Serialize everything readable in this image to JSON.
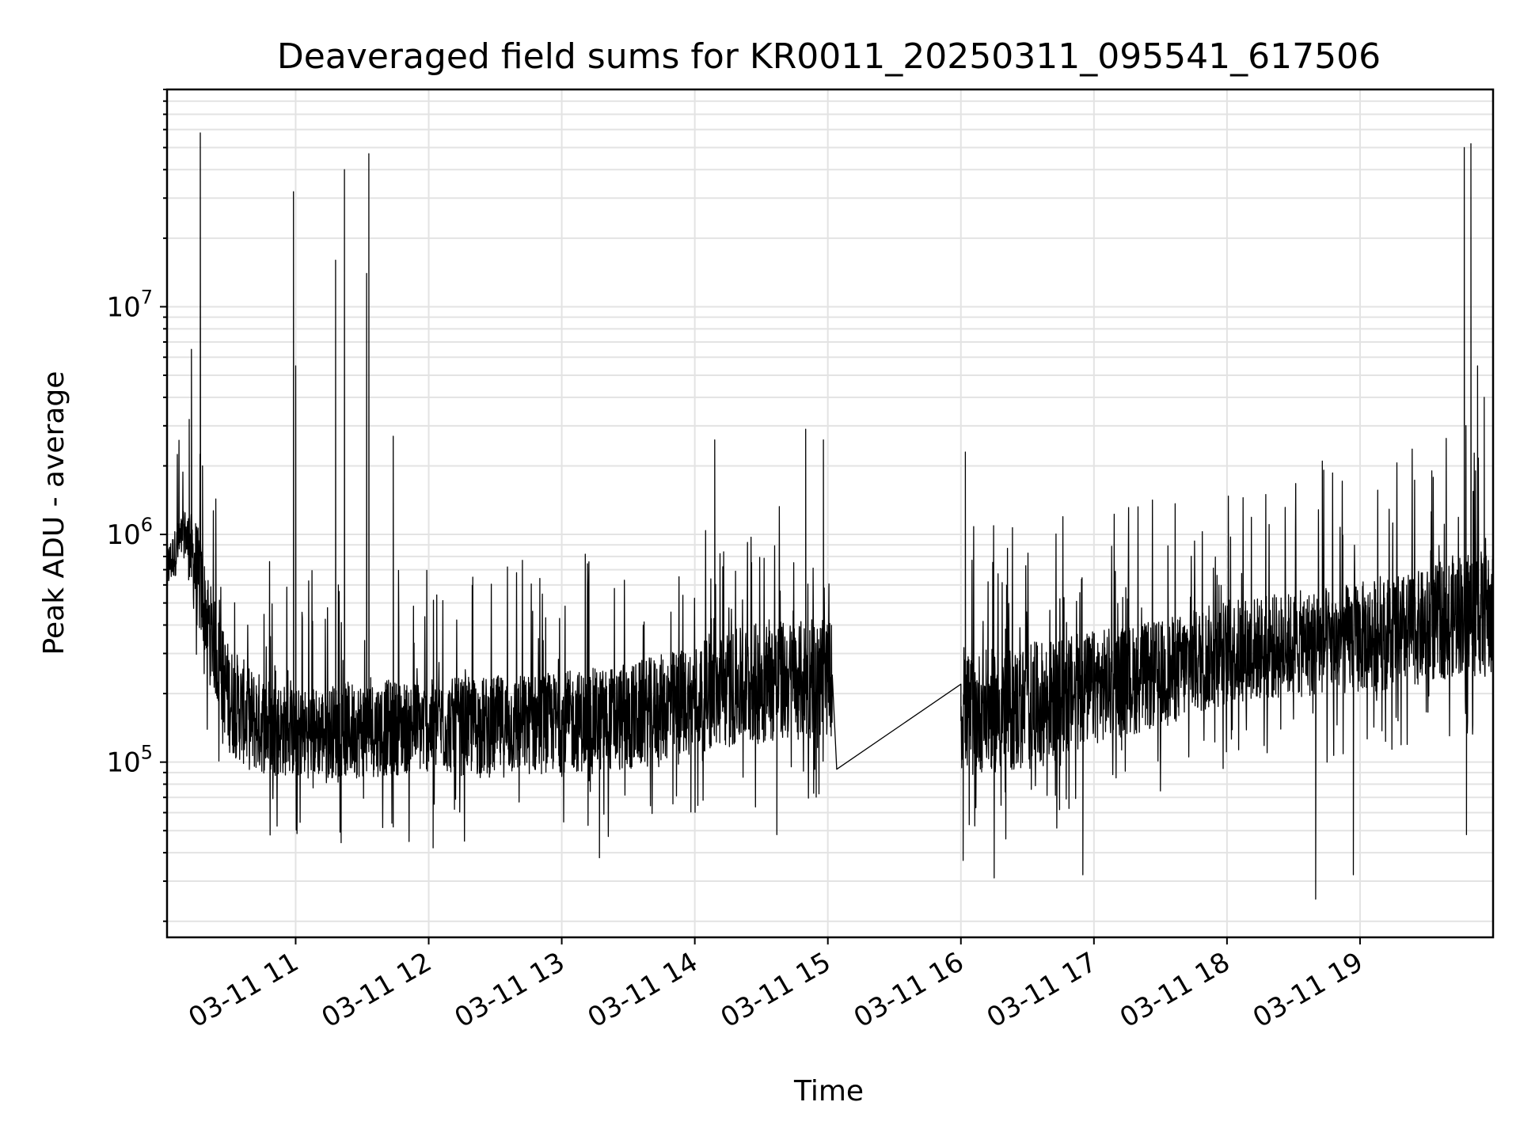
{
  "chart_data": {
    "type": "line",
    "title": "Deaveraged field sums for KR0011_20250311_095541_617506",
    "xlabel": "Time",
    "ylabel": "Peak ADU - average",
    "yscale": "log",
    "grid": true,
    "x_tick_labels": [
      "03-11 11",
      "03-11 12",
      "03-11 13",
      "03-11 14",
      "03-11 15",
      "03-11 16",
      "03-11 17",
      "03-11 18",
      "03-11 19"
    ],
    "x_ticks": [
      "2025-03-11 11:00",
      "2025-03-11 12:00",
      "2025-03-11 13:00",
      "2025-03-11 14:00",
      "2025-03-11 15:00",
      "2025-03-11 16:00",
      "2025-03-11 17:00",
      "2025-03-11 18:00",
      "2025-03-11 19:00"
    ],
    "xlim": [
      "2025-03-11 10:02",
      "2025-03-11 20:00"
    ],
    "y_ticks": [
      100000,
      1000000,
      10000000
    ],
    "y_tick_labels": [
      {
        "base": "10",
        "exp": "5"
      },
      {
        "base": "10",
        "exp": "6"
      },
      {
        "base": "10",
        "exp": "7"
      }
    ],
    "ylim": [
      17000,
      90000000
    ],
    "series": [
      {
        "color": "#000000",
        "envelope": [
          {
            "x": "2025-03-11 10:02",
            "low": 550000,
            "high": 900000
          },
          {
            "x": "2025-03-11 10:10",
            "low": 800000,
            "high": 1300000
          },
          {
            "x": "2025-03-11 10:15",
            "low": 400000,
            "high": 1200000
          },
          {
            "x": "2025-03-11 10:20",
            "low": 280000,
            "high": 700000
          },
          {
            "x": "2025-03-11 10:25",
            "low": 170000,
            "high": 450000
          },
          {
            "x": "2025-03-11 10:30",
            "low": 110000,
            "high": 330000
          },
          {
            "x": "2025-03-11 10:40",
            "low": 90000,
            "high": 260000
          },
          {
            "x": "2025-03-11 11:00",
            "low": 85000,
            "high": 210000
          },
          {
            "x": "2025-03-11 11:30",
            "low": 85000,
            "high": 230000
          },
          {
            "x": "2025-03-11 12:00",
            "low": 90000,
            "high": 230000
          },
          {
            "x": "2025-03-11 12:30",
            "low": 85000,
            "high": 240000
          },
          {
            "x": "2025-03-11 13:00",
            "low": 90000,
            "high": 250000
          },
          {
            "x": "2025-03-11 13:30",
            "low": 90000,
            "high": 270000
          },
          {
            "x": "2025-03-11 14:00",
            "low": 110000,
            "high": 330000
          },
          {
            "x": "2025-03-11 14:30",
            "low": 120000,
            "high": 420000
          },
          {
            "x": "2025-03-11 15:02",
            "low": 130000,
            "high": 420000
          }
        ],
        "gap_segment": [
          {
            "x": "2025-03-11 15:04",
            "y": 93000
          },
          {
            "x": "2025-03-11 16:00",
            "y": 220000
          }
        ],
        "envelope_2": [
          {
            "x": "2025-03-11 16:00",
            "low": 90000,
            "high": 300000
          },
          {
            "x": "2025-03-11 16:30",
            "low": 90000,
            "high": 330000
          },
          {
            "x": "2025-03-11 17:00",
            "low": 120000,
            "high": 380000
          },
          {
            "x": "2025-03-11 17:30",
            "low": 140000,
            "high": 420000
          },
          {
            "x": "2025-03-11 18:00",
            "low": 180000,
            "high": 520000
          },
          {
            "x": "2025-03-11 18:30",
            "low": 190000,
            "high": 560000
          },
          {
            "x": "2025-03-11 19:00",
            "low": 200000,
            "high": 620000
          },
          {
            "x": "2025-03-11 19:30",
            "low": 220000,
            "high": 700000
          },
          {
            "x": "2025-03-11 19:50",
            "low": 250000,
            "high": 900000
          },
          {
            "x": "2025-03-11 20:00",
            "low": 220000,
            "high": 800000
          }
        ],
        "spikes": [
          {
            "x": "2025-03-11 10:13",
            "y": 6500000
          },
          {
            "x": "2025-03-11 10:12",
            "y": 3200000
          },
          {
            "x": "2025-03-11 10:17",
            "y": 58000000
          },
          {
            "x": "2025-03-11 10:18",
            "y": 2000000
          },
          {
            "x": "2025-03-11 10:59",
            "y": 32000000
          },
          {
            "x": "2025-03-11 11:00",
            "y": 5500000
          },
          {
            "x": "2025-03-11 11:18",
            "y": 16000000
          },
          {
            "x": "2025-03-11 11:22",
            "y": 40000000
          },
          {
            "x": "2025-03-11 11:32",
            "y": 14000000
          },
          {
            "x": "2025-03-11 11:33",
            "y": 47000000
          },
          {
            "x": "2025-03-11 11:44",
            "y": 2700000
          },
          {
            "x": "2025-03-11 14:09",
            "y": 2600000
          },
          {
            "x": "2025-03-11 14:50",
            "y": 2900000
          },
          {
            "x": "2025-03-11 14:58",
            "y": 2600000
          },
          {
            "x": "2025-03-11 16:02",
            "y": 2300000
          },
          {
            "x": "2025-03-11 18:43",
            "y": 2100000
          },
          {
            "x": "2025-03-11 19:47",
            "y": 22000000
          },
          {
            "x": "2025-03-11 19:47",
            "y": 50000000
          },
          {
            "x": "2025-03-11 19:50",
            "y": 52000000
          },
          {
            "x": "2025-03-11 19:53",
            "y": 5500000
          },
          {
            "x": "2025-03-11 19:56",
            "y": 4000000
          }
        ],
        "dips": [
          {
            "x": "2025-03-11 12:02",
            "y": 42000
          },
          {
            "x": "2025-03-11 13:17",
            "y": 38000
          },
          {
            "x": "2025-03-11 14:37",
            "y": 48000
          },
          {
            "x": "2025-03-11 16:01",
            "y": 37000
          },
          {
            "x": "2025-03-11 16:15",
            "y": 31000
          },
          {
            "x": "2025-03-11 16:55",
            "y": 32000
          },
          {
            "x": "2025-03-11 18:40",
            "y": 25000
          },
          {
            "x": "2025-03-11 18:57",
            "y": 32000
          },
          {
            "x": "2025-03-11 19:48",
            "y": 48000
          }
        ]
      }
    ]
  }
}
